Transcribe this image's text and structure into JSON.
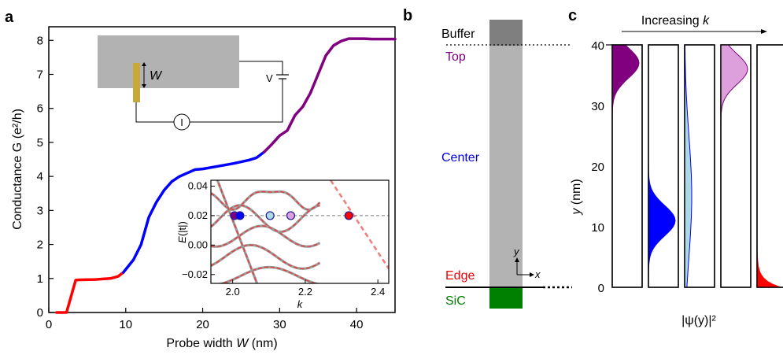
{
  "panels": [
    "a",
    "b",
    "c"
  ],
  "panel_a": {
    "xlabel_prefix": "Probe width ",
    "xlabel_var": "W",
    "xlabel_unit": " (nm)",
    "ylabel": "Conductance G (e²/h)",
    "inset_diagram": {
      "w_label": "W",
      "v_label": "V",
      "i_label": "I"
    }
  },
  "panel_b": {
    "layers": [
      "Buffer",
      "Top",
      "Center",
      "Edge",
      "SiC"
    ],
    "layer_colors": {
      "Buffer": "#000000",
      "Top": "#800080",
      "Center": "#0000ee",
      "Edge": "#ee0000",
      "SiC": "#008000"
    },
    "axis_y": "y",
    "axis_x": "x"
  },
  "panel_c": {
    "header_prefix": "Increasing ",
    "header_var": "k",
    "xlabel": "|ψ(y)|²",
    "ylabel_var": "y",
    "ylabel_unit": " (nm)"
  },
  "chart_data": [
    {
      "type": "line",
      "title": "",
      "xlabel": "Probe width W (nm)",
      "ylabel": "Conductance G (e²/h)",
      "xlim": [
        0,
        45
      ],
      "ylim": [
        0,
        8.4
      ],
      "xticks": [
        0,
        10,
        20,
        30,
        40
      ],
      "yticks": [
        0,
        1,
        2,
        3,
        4,
        5,
        6,
        7,
        8
      ],
      "series": [
        {
          "color": "#ff0000",
          "x": [
            1,
            2.3,
            3.5,
            4,
            6,
            8,
            9,
            9.7
          ],
          "y": [
            0,
            0,
            0.95,
            0.96,
            0.97,
            1.0,
            1.06,
            1.18
          ]
        },
        {
          "color": "#0000ff",
          "x": [
            9.7,
            11,
            12,
            13,
            14,
            15,
            16,
            17,
            18,
            19,
            20,
            22,
            24,
            26,
            27,
            28
          ],
          "y": [
            1.18,
            1.55,
            2.0,
            2.8,
            3.25,
            3.6,
            3.85,
            4.0,
            4.1,
            4.2,
            4.22,
            4.3,
            4.38,
            4.48,
            4.55,
            4.72
          ]
        },
        {
          "color": "#800080",
          "x": [
            28,
            29,
            30,
            31,
            32,
            33,
            34,
            35,
            36,
            37,
            38,
            39,
            40,
            41,
            42,
            45
          ],
          "y": [
            4.72,
            4.95,
            5.2,
            5.35,
            5.8,
            6.05,
            6.45,
            7.0,
            7.55,
            7.85,
            7.98,
            8.05,
            8.05,
            8.05,
            8.04,
            8.04
          ]
        }
      ]
    },
    {
      "type": "line",
      "title": "",
      "xlabel": "k",
      "ylabel": "E(|t|)",
      "xlim": [
        1.94,
        2.43
      ],
      "ylim": [
        -0.026,
        0.044
      ],
      "xticks": [
        2.0,
        2.2,
        2.4
      ],
      "yticks": [
        -0.02,
        0.0,
        0.02,
        0.04
      ],
      "fermi_level": 0.02,
      "points": [
        {
          "k": 2.005,
          "E": 0.02,
          "color": "#800080"
        },
        {
          "k": 2.02,
          "E": 0.02,
          "color": "#0000ff"
        },
        {
          "k": 2.103,
          "E": 0.02,
          "color": "#add8e6"
        },
        {
          "k": 2.16,
          "E": 0.02,
          "color": "#dda0dd"
        },
        {
          "k": 2.32,
          "E": 0.02,
          "color": "#ff0000"
        }
      ]
    },
    {
      "type": "area",
      "title": "",
      "xlabel": "|ψ(y)|²",
      "ylabel": "y (nm)",
      "ylim": [
        0,
        40
      ],
      "yticks": [
        0,
        10,
        20,
        30,
        40
      ],
      "profiles": [
        {
          "color": "#800080",
          "peak_y": 37,
          "spread": 2.5
        },
        {
          "color": "#0000ff",
          "peak_y": 11,
          "spread": 2.5
        },
        {
          "color": "#add8e6",
          "peak_y": 15,
          "spread": 10
        },
        {
          "color": "#dda0dd",
          "peak_y": 36,
          "spread": 2.5
        },
        {
          "color": "#ff0000",
          "peak_y": 0,
          "spread": 1
        }
      ]
    }
  ]
}
